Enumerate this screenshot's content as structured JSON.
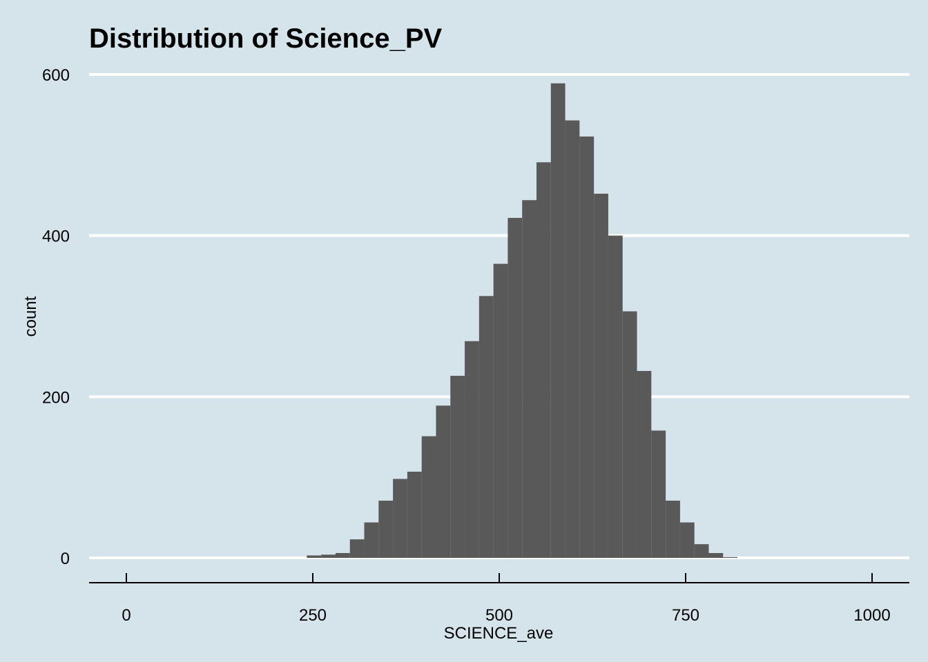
{
  "chart_data": {
    "type": "bar",
    "title": "Distribution of Science_PV",
    "xlabel": "SCIENCE_ave",
    "ylabel": "count",
    "xlim": [
      -50,
      1050
    ],
    "ylim": [
      -30,
      600
    ],
    "x_ticks": [
      0,
      250,
      500,
      750,
      1000
    ],
    "y_ticks": [
      0,
      200,
      400,
      600
    ],
    "x_tick_labels": [
      "0",
      "250",
      "500",
      "750",
      "1000"
    ],
    "y_tick_labels": [
      "0",
      "200",
      "400",
      "600"
    ],
    "grid": "horizontal",
    "bar_color": "#595959",
    "background": "#d5e4eb",
    "bin_width": 19.25,
    "bins": [
      {
        "start": 242,
        "count": 3
      },
      {
        "start": 261.25,
        "count": 4
      },
      {
        "start": 280.5,
        "count": 6
      },
      {
        "start": 299.75,
        "count": 23
      },
      {
        "start": 319,
        "count": 44
      },
      {
        "start": 338.25,
        "count": 71
      },
      {
        "start": 357.5,
        "count": 98
      },
      {
        "start": 376.75,
        "count": 107
      },
      {
        "start": 396,
        "count": 151
      },
      {
        "start": 415.25,
        "count": 189
      },
      {
        "start": 434.5,
        "count": 226
      },
      {
        "start": 453.75,
        "count": 269
      },
      {
        "start": 473,
        "count": 325
      },
      {
        "start": 492.25,
        "count": 365
      },
      {
        "start": 511.5,
        "count": 422
      },
      {
        "start": 530.75,
        "count": 444
      },
      {
        "start": 550,
        "count": 491
      },
      {
        "start": 569.25,
        "count": 589
      },
      {
        "start": 588.5,
        "count": 543
      },
      {
        "start": 607.75,
        "count": 523
      },
      {
        "start": 627,
        "count": 452
      },
      {
        "start": 646.25,
        "count": 400
      },
      {
        "start": 665.5,
        "count": 306
      },
      {
        "start": 684.75,
        "count": 232
      },
      {
        "start": 704,
        "count": 158
      },
      {
        "start": 723.25,
        "count": 71
      },
      {
        "start": 742.5,
        "count": 44
      },
      {
        "start": 761.75,
        "count": 17
      },
      {
        "start": 781,
        "count": 6
      },
      {
        "start": 800.25,
        "count": 1
      }
    ]
  }
}
